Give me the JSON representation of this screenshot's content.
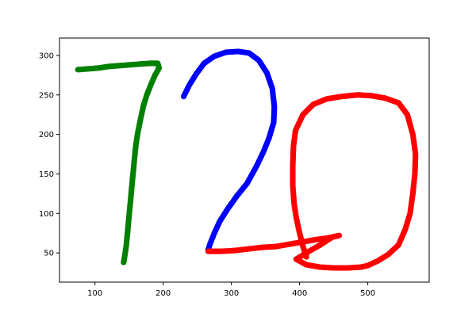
{
  "chart_data": {
    "type": "scatter",
    "title": "",
    "xlabel": "",
    "ylabel": "",
    "xlim": [
      48,
      590
    ],
    "ylim": [
      13,
      322
    ],
    "x_ticks": [
      100,
      200,
      300,
      400,
      500
    ],
    "y_ticks": [
      50,
      100,
      150,
      200,
      250,
      300
    ],
    "grid": false,
    "legend": "none",
    "series": [
      {
        "color": "#008000",
        "points": [
          [
            75,
            282
          ],
          [
            90,
            283
          ],
          [
            105,
            284
          ],
          [
            120,
            286
          ],
          [
            135,
            287
          ],
          [
            150,
            288
          ],
          [
            165,
            289
          ],
          [
            180,
            290
          ],
          [
            192,
            290
          ],
          [
            194,
            284
          ],
          [
            188,
            275
          ],
          [
            182,
            263
          ],
          [
            176,
            250
          ],
          [
            171,
            236
          ],
          [
            167,
            220
          ],
          [
            163,
            203
          ],
          [
            160,
            187
          ],
          [
            158,
            170
          ],
          [
            156,
            152
          ],
          [
            154,
            134
          ],
          [
            152,
            115
          ],
          [
            150,
            97
          ],
          [
            148,
            78
          ],
          [
            146,
            60
          ],
          [
            144,
            48
          ],
          [
            142,
            38
          ]
        ]
      },
      {
        "color": "#0000ff",
        "points": [
          [
            230,
            248
          ],
          [
            238,
            262
          ],
          [
            248,
            276
          ],
          [
            260,
            290
          ],
          [
            275,
            299
          ],
          [
            292,
            304
          ],
          [
            310,
            305
          ],
          [
            326,
            303
          ],
          [
            340,
            294
          ],
          [
            352,
            278
          ],
          [
            360,
            258
          ],
          [
            363,
            235
          ],
          [
            362,
            215
          ],
          [
            355,
            195
          ],
          [
            347,
            178
          ],
          [
            337,
            160
          ],
          [
            323,
            138
          ],
          [
            308,
            122
          ],
          [
            294,
            105
          ],
          [
            283,
            90
          ],
          [
            275,
            75
          ],
          [
            269,
            62
          ],
          [
            266,
            54
          ]
        ]
      },
      {
        "color": "#ff0000",
        "points": [
          [
            266,
            52
          ],
          [
            285,
            52
          ],
          [
            305,
            53
          ],
          [
            325,
            55
          ],
          [
            345,
            57
          ],
          [
            365,
            58
          ],
          [
            385,
            61
          ],
          [
            405,
            64
          ],
          [
            425,
            67
          ],
          [
            442,
            69
          ],
          [
            458,
            72
          ],
          [
            448,
            70
          ],
          [
            430,
            60
          ],
          [
            410,
            50
          ],
          [
            395,
            42
          ],
          [
            410,
            35
          ],
          [
            430,
            32
          ],
          [
            450,
            31
          ],
          [
            470,
            31
          ],
          [
            490,
            32
          ],
          [
            500,
            34
          ],
          [
            515,
            40
          ],
          [
            530,
            48
          ],
          [
            545,
            60
          ],
          [
            555,
            80
          ],
          [
            562,
            100
          ],
          [
            566,
            125
          ],
          [
            569,
            150
          ],
          [
            570,
            175
          ],
          [
            566,
            200
          ],
          [
            558,
            225
          ],
          [
            545,
            240
          ],
          [
            525,
            246
          ],
          [
            505,
            249
          ],
          [
            485,
            250
          ],
          [
            462,
            248
          ],
          [
            440,
            245
          ],
          [
            420,
            238
          ],
          [
            405,
            225
          ],
          [
            394,
            205
          ],
          [
            391,
            185
          ],
          [
            390,
            160
          ],
          [
            390,
            135
          ],
          [
            392,
            112
          ],
          [
            395,
            95
          ],
          [
            400,
            75
          ],
          [
            405,
            58
          ],
          [
            410,
            45
          ]
        ]
      }
    ]
  }
}
